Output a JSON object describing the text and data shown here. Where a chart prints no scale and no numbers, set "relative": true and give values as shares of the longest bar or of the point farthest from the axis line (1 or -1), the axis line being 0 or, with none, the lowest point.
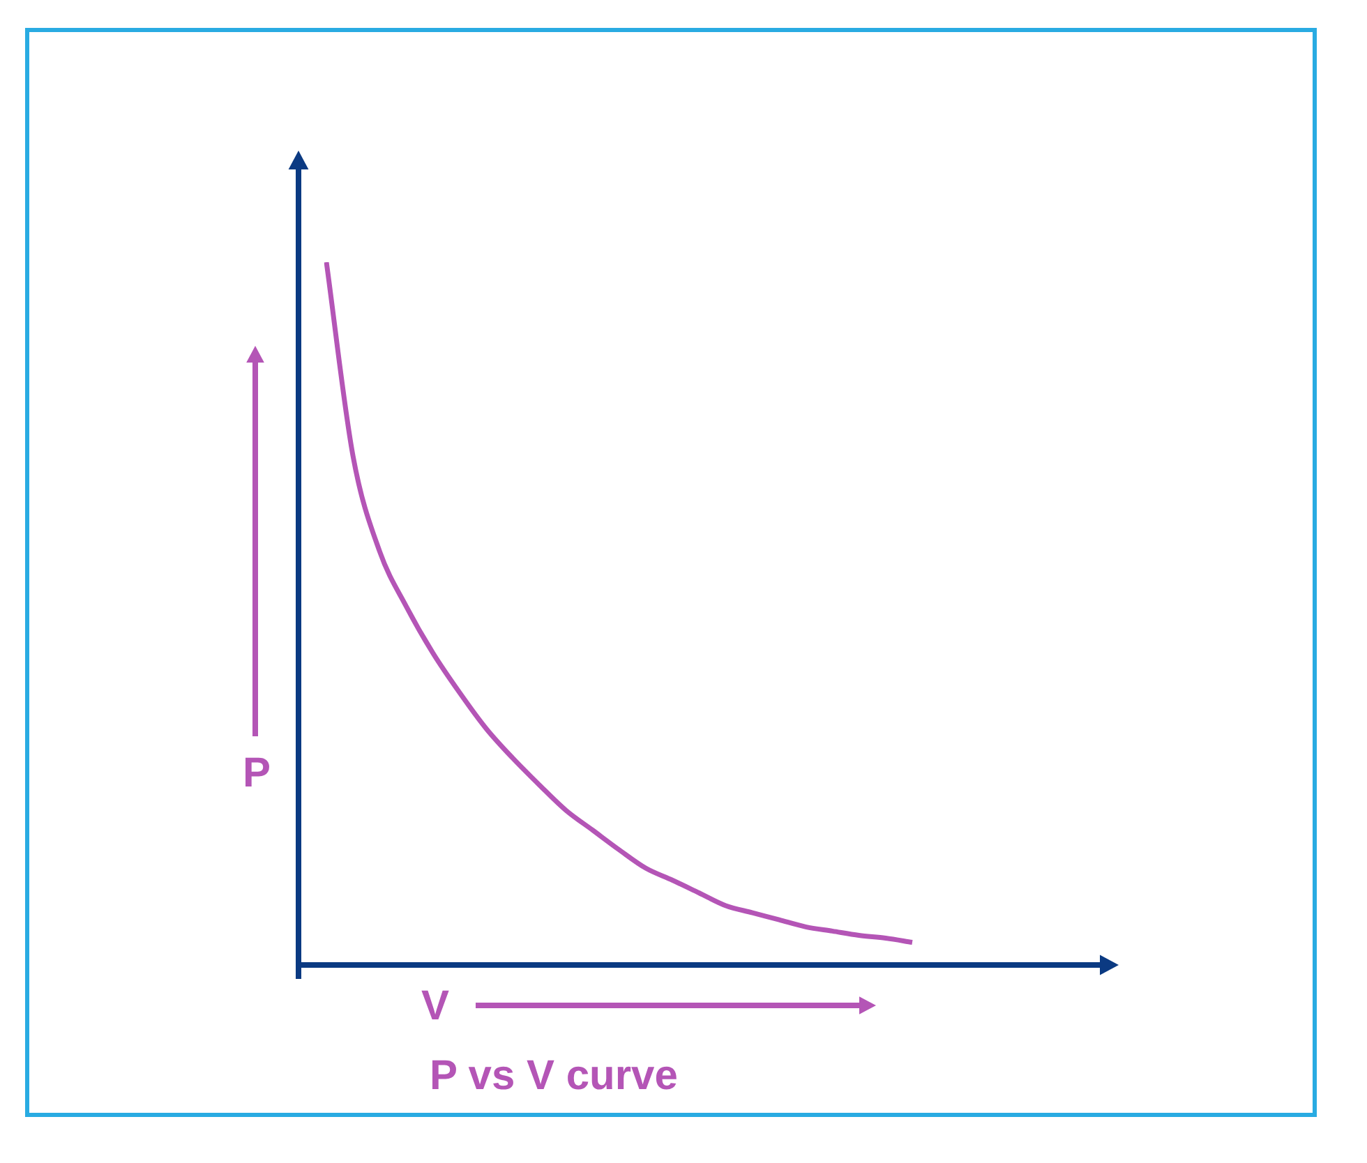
{
  "chart_data": {
    "type": "line",
    "title": "P vs V curve",
    "xlabel": "V",
    "ylabel": "P",
    "relative": true,
    "marker": "none",
    "categories": [
      null,
      null,
      null,
      null,
      null,
      null,
      null,
      null,
      null,
      null,
      null,
      null,
      null,
      null,
      null,
      null,
      null,
      null,
      null,
      null,
      null,
      null,
      null
    ],
    "series": [
      {
        "color": "#b455b6",
        "values": [
          1,
          0.725,
          0.59,
          0.512,
          0.446,
          0.39,
          0.339,
          0.297,
          0.259,
          0.223,
          0.195,
          0.167,
          0.141,
          0.124,
          0.106,
          0.088,
          0.078,
          0.068,
          0.058,
          0.052,
          0.046,
          0.042,
          0.036
        ]
      }
    ]
  }
}
